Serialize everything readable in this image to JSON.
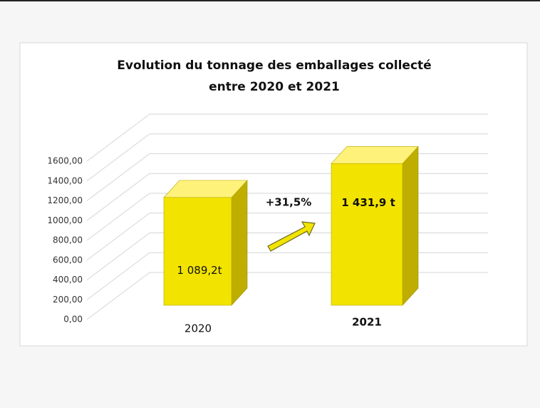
{
  "chart_data": {
    "type": "bar3d",
    "title": [
      "Evolution du tonnage des emballages collecté",
      "entre 2020 et 2021"
    ],
    "categories": [
      "2020",
      "2021"
    ],
    "values": [
      1089.2,
      1431.9
    ],
    "value_labels": [
      "1 089,2t",
      "1 431,9 t"
    ],
    "color": "#f2e400",
    "ylim": [
      0,
      1600
    ],
    "yticks": [
      {
        "value": 0,
        "label": "0,00"
      },
      {
        "value": 200,
        "label": "200,00"
      },
      {
        "value": 400,
        "label": "400,00"
      },
      {
        "value": 600,
        "label": "600,00"
      },
      {
        "value": 800,
        "label": "800,00"
      },
      {
        "value": 1000,
        "label": "1000,00"
      },
      {
        "value": 1200,
        "label": "1200,00"
      },
      {
        "value": 1400,
        "label": "1400,00"
      },
      {
        "value": 1600,
        "label": "1600,00"
      }
    ],
    "grid": true,
    "annotation": "+31,5%"
  }
}
